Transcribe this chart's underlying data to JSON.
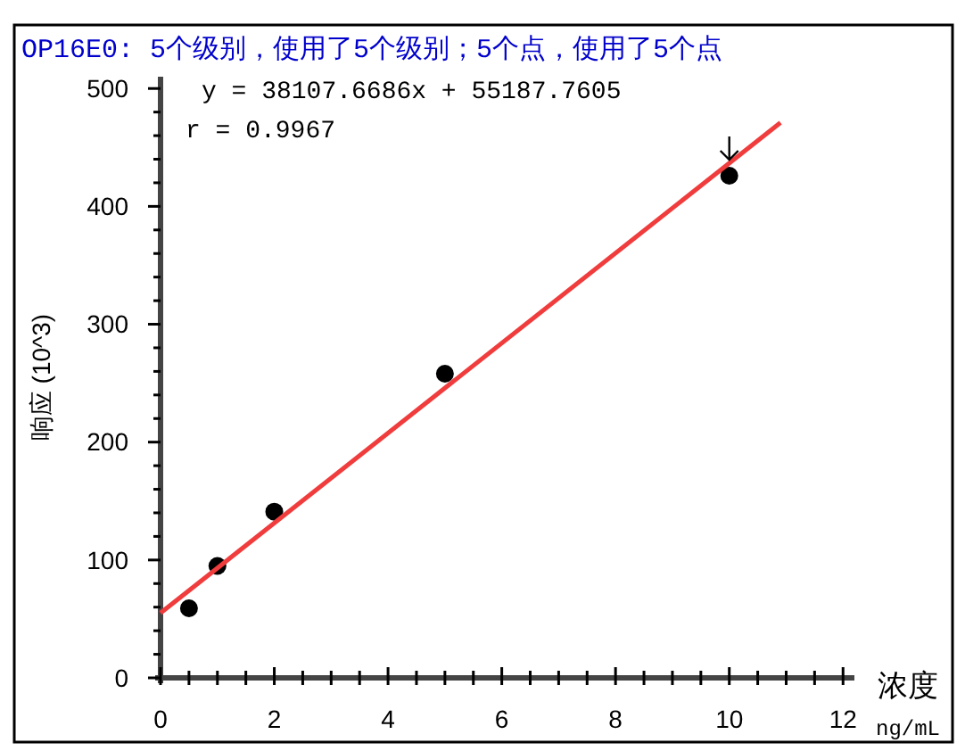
{
  "chart_data": {
    "type": "scatter",
    "title": "OP16E0: 5个级别，使用了5个级别；5个点，使用了5个点",
    "xlabel": "浓度 ng/mL",
    "ylabel": "响应 (10^3)",
    "annotations": [
      "y = 38107.6686x + 55187.7605",
      "r = 0.9967"
    ],
    "x": [
      0.5,
      1,
      2,
      5,
      10
    ],
    "series": [
      {
        "color": "#000000",
        "marker": "circle",
        "values": [
          59,
          95,
          141,
          258,
          426
        ]
      },
      {
        "type": "line",
        "color": "#f03c3c",
        "x": [
          0,
          10.9
        ],
        "values": [
          55,
          471
        ]
      }
    ],
    "xlim": [
      0,
      12.2
    ],
    "ylim": [
      0,
      510
    ],
    "xticks": [
      0,
      {
        "value": 0.5,
        "label": null
      },
      2,
      {
        "value": 1,
        "label": null
      },
      {
        "value": 1.5,
        "label": null
      },
      {
        "value": 2.5,
        "label": null
      },
      {
        "value": 3,
        "label": null
      },
      {
        "value": 3.5,
        "label": null
      },
      4,
      {
        "value": 4.5,
        "label": null
      },
      {
        "value": 5,
        "label": null
      },
      {
        "value": 5.5,
        "label": null
      },
      6,
      {
        "value": 6.5,
        "label": null
      },
      {
        "value": 7,
        "label": null
      },
      {
        "value": 7.5,
        "label": null
      },
      8,
      {
        "value": 8.5,
        "label": null
      },
      {
        "value": 9,
        "label": null
      },
      {
        "value": 9.5,
        "label": null
      },
      10,
      {
        "value": 10.5,
        "label": null
      },
      {
        "value": 11,
        "label": null
      },
      {
        "value": 11.5,
        "label": null
      },
      12
    ],
    "yticks": [
      0,
      {
        "value": 20,
        "label": null
      },
      {
        "value": 40,
        "label": null
      },
      {
        "value": 60,
        "label": null
      },
      {
        "value": 80,
        "label": null
      },
      100,
      {
        "value": 120,
        "label": null
      },
      {
        "value": 140,
        "label": null
      },
      {
        "value": 160,
        "label": null
      },
      {
        "value": 180,
        "label": null
      },
      200,
      {
        "value": 220,
        "label": null
      },
      {
        "value": 240,
        "label": null
      },
      {
        "value": 260,
        "label": null
      },
      {
        "value": 280,
        "label": null
      },
      300,
      {
        "value": 320,
        "label": null
      },
      {
        "value": 340,
        "label": null
      },
      {
        "value": 360,
        "label": null
      },
      {
        "value": 380,
        "label": null
      },
      400,
      {
        "value": 420,
        "label": null
      },
      {
        "value": 440,
        "label": null
      },
      {
        "value": 460,
        "label": null
      },
      {
        "value": 480,
        "label": null
      },
      500
    ]
  }
}
